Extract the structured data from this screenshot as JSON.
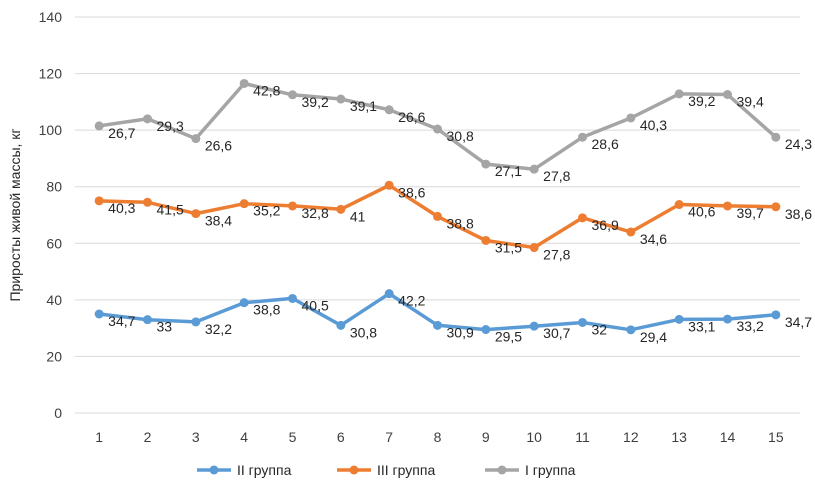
{
  "chart_data": {
    "type": "line",
    "title": "",
    "xlabel": "",
    "ylabel": "Приросты живой массы, кг",
    "ylim": [
      0,
      140
    ],
    "yticks": [
      0,
      20,
      40,
      60,
      80,
      100,
      120,
      140
    ],
    "categories": [
      "1",
      "2",
      "3",
      "4",
      "5",
      "6",
      "7",
      "8",
      "9",
      "10",
      "11",
      "12",
      "13",
      "14",
      "15"
    ],
    "grid": "horizontal",
    "legend_position": "bottom",
    "series": [
      {
        "name": "II группа",
        "color": "#5B9BD5",
        "values": [
          35,
          33,
          32.2,
          39,
          40.5,
          31,
          42.2,
          31,
          29.5,
          30.7,
          32,
          29.4,
          33.1,
          33.2,
          34.7
        ],
        "labels": [
          "34,7",
          "33",
          "32,2",
          "38,8",
          "40,5",
          "30,8",
          "42,2",
          "30,9",
          "29,5",
          "30,7",
          "32",
          "29,4",
          "33,1",
          "33,2",
          "34,7"
        ]
      },
      {
        "name": "III группа",
        "color": "#ED7D31",
        "values": [
          75,
          74.5,
          70.5,
          74,
          73.2,
          72,
          80.5,
          69.5,
          61,
          58.5,
          69,
          64,
          73.7,
          73.2,
          72.9
        ],
        "labels": [
          "40,3",
          "41,5",
          "38,4",
          "35,2",
          "32,8",
          "41",
          "38,6",
          "38,8",
          "31,5",
          "27,8",
          "36,9",
          "34,6",
          "40,6",
          "39,7",
          "38,6"
        ]
      },
      {
        "name": "I группа",
        "color": "#A5A5A5",
        "values": [
          101.5,
          104,
          97,
          116.5,
          112.5,
          111,
          107.2,
          100.4,
          88,
          86.2,
          97.5,
          104.3,
          112.8,
          112.6,
          97.5
        ],
        "labels": [
          "26,7",
          "29,3",
          "26,6",
          "42,8",
          "39,2",
          "39,1",
          "26,6",
          "30,8",
          "27,1",
          "27,8",
          "28,6",
          "40,3",
          "39,2",
          "39,4",
          "24,3"
        ]
      }
    ]
  }
}
